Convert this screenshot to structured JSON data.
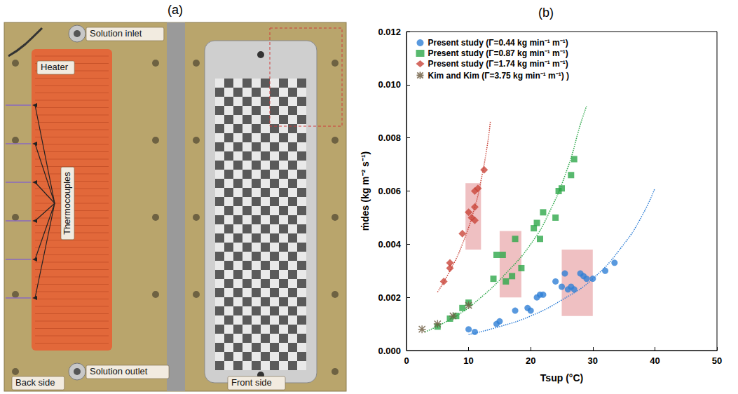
{
  "photo": {
    "label": "(a)",
    "texts": {
      "inlet": "Solution inlet",
      "heater": "Heater",
      "thermocouples": "Thermocouples",
      "outlet": "Solution outlet",
      "back": "Back side",
      "front": "Front side"
    }
  },
  "chart_data": {
    "type": "scatter",
    "title": "(b)",
    "xlabel": "Tsup (°C)",
    "ylabel": "ṁdes (kg m⁻² s⁻¹)",
    "xlim": [
      0,
      50
    ],
    "xticks": [
      0,
      10,
      20,
      30,
      40,
      50
    ],
    "ylim": [
      0,
      0.012
    ],
    "yticks": [
      {
        "value": 0,
        "label": "0.000"
      },
      0.002,
      0.004,
      0.006,
      0.008,
      {
        "value": 0.01,
        "label": "0.010"
      },
      0.012
    ],
    "grid": false,
    "legend": "top-left",
    "series": [
      {
        "name": "Present study (Γ=0.44 kg min⁻¹ m⁻¹)",
        "color": "#2f7fd6",
        "marker": "circle",
        "x": [
          10,
          11,
          14.5,
          15,
          17.5,
          19.5,
          20,
          21,
          21.5,
          22,
          24,
          25,
          25.5,
          26,
          26.5,
          27,
          28,
          28.5,
          29,
          30,
          32,
          33.5
        ],
        "values": [
          0.0008,
          0.0007,
          0.001,
          0.0011,
          0.0015,
          0.0016,
          0.0015,
          0.002,
          0.0021,
          0.0021,
          0.0026,
          0.0024,
          0.0029,
          0.0023,
          0.0024,
          0.0023,
          0.0029,
          0.0028,
          0.0027,
          0.0027,
          0.003,
          0.0033
        ]
      },
      {
        "name": "Present study (Γ=0.87 kg min⁻¹ m⁻¹)",
        "color": "#2ea84a",
        "marker": "square",
        "x": [
          5,
          7,
          8,
          9,
          10,
          14,
          14.5,
          15.5,
          16,
          17,
          17.5,
          18.5,
          20.5,
          21,
          21.5,
          22,
          24,
          24.5,
          25,
          26.5,
          27
        ],
        "values": [
          0.0009,
          0.0012,
          0.0013,
          0.0016,
          0.0018,
          0.0027,
          0.0036,
          0.0036,
          0.0026,
          0.0028,
          0.0042,
          0.0031,
          0.0046,
          0.0048,
          0.0042,
          0.0052,
          0.005,
          0.006,
          0.0061,
          0.0066,
          0.0072
        ]
      },
      {
        "name": "Present study (Γ=1.74 kg min⁻¹ m⁻¹)",
        "color": "#c9453a",
        "marker": "diamond",
        "x": [
          6,
          7,
          7,
          9,
          10,
          10.5,
          11,
          11,
          11,
          11.5,
          12.5
        ],
        "values": [
          0.0026,
          0.0033,
          0.0031,
          0.0044,
          0.0052,
          0.005,
          0.0049,
          0.0054,
          0.006,
          0.0061,
          0.0068
        ]
      },
      {
        "name": "Kim and Kim (Γ=3.75 kg min⁻¹ m⁻¹) )",
        "color": "#6b5a3e",
        "marker": "asterisk",
        "x": [
          2.5,
          5,
          7.5,
          10
        ],
        "values": [
          0.0008,
          0.001,
          0.0013,
          0.0017
        ]
      }
    ],
    "curves": [
      {
        "color": "#2f7fd6",
        "line_style": "dotted",
        "x": [
          10,
          15,
          20,
          25,
          30,
          35,
          38,
          40
        ],
        "values": [
          0.0006,
          0.0009,
          0.0013,
          0.0019,
          0.0027,
          0.004,
          0.0051,
          0.0061
        ]
      },
      {
        "color": "#2ea84a",
        "line_style": "dotted",
        "x": [
          3,
          8,
          12,
          16,
          20,
          23,
          26,
          28,
          29
        ],
        "values": [
          0.0007,
          0.0013,
          0.002,
          0.0029,
          0.004,
          0.0052,
          0.0069,
          0.0085,
          0.0092
        ]
      },
      {
        "color": "#c9453a",
        "line_style": "dotted",
        "x": [
          5,
          7,
          9,
          11,
          12,
          13,
          13.5
        ],
        "values": [
          0.0022,
          0.003,
          0.004,
          0.0054,
          0.0064,
          0.0077,
          0.0086
        ]
      }
    ],
    "highlight_boxes": {
      "color": "#e8a5a8",
      "boxes": [
        {
          "x": [
            9.5,
            12
          ],
          "y": [
            0.0038,
            0.0063
          ]
        },
        {
          "x": [
            15,
            18.5
          ],
          "y": [
            0.002,
            0.0045
          ]
        },
        {
          "x": [
            25,
            30
          ],
          "y": [
            0.0013,
            0.0038
          ]
        }
      ]
    }
  }
}
